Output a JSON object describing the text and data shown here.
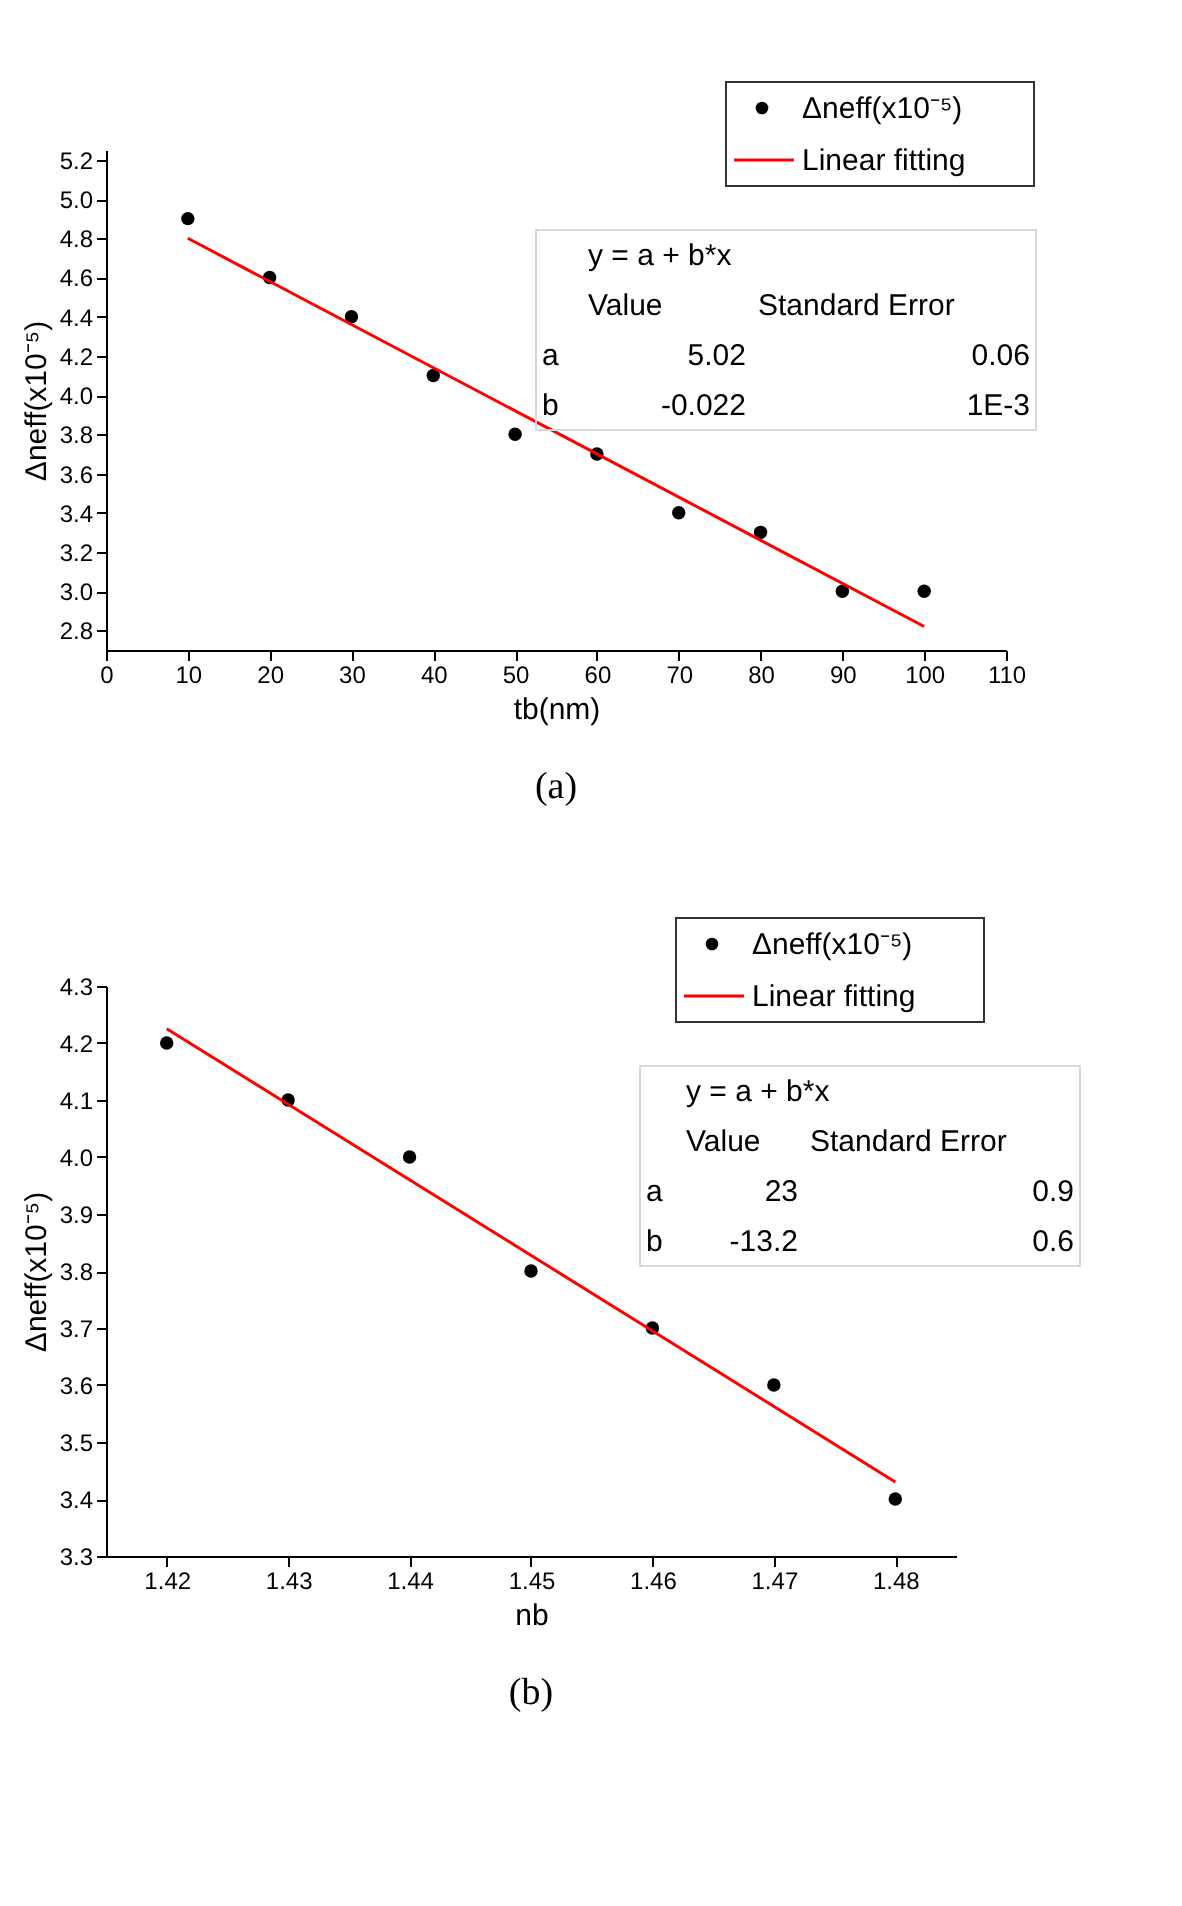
{
  "chart_data": [
    {
      "type": "scatter",
      "xlabel": "tb(nm)",
      "ylabel": "Δneff(x10⁻⁵)",
      "xlim": [
        0,
        110
      ],
      "xticks": [
        0,
        10,
        20,
        30,
        40,
        50,
        60,
        70,
        80,
        90,
        100,
        110
      ],
      "ylim": [
        2.7,
        5.25
      ],
      "yticks": [
        2.8,
        {
          "value": 3,
          "label": "3.0"
        },
        3.2,
        3.4,
        3.6,
        3.8,
        {
          "value": 4,
          "label": "4.0"
        },
        4.2,
        4.4,
        4.6,
        4.8,
        {
          "value": 5,
          "label": "5.0"
        },
        5.2
      ],
      "legend": "top right",
      "series": [
        {
          "name": "Δneff(x10⁻⁵)",
          "color": "#000000",
          "x": [
            10,
            20,
            30,
            40,
            50,
            60,
            70,
            80,
            90,
            100
          ],
          "values": [
            4.9,
            4.6,
            4.4,
            4.1,
            3.8,
            3.7,
            3.4,
            3.3,
            3.0,
            3.0
          ]
        },
        {
          "name": "Linear fitting",
          "type": "line",
          "color": "#ff0000",
          "x": [
            10,
            100
          ],
          "values": [
            4.8,
            2.82
          ]
        }
      ],
      "annotations": [
        "(a)",
        "y = a + b*x",
        "Value",
        "Standard Error",
        "a",
        "5.02",
        "0.06",
        "b",
        "-0.022",
        "1E-3"
      ]
    },
    {
      "type": "scatter",
      "xlabel": "nb",
      "ylabel": "Δneff(x10⁻⁵)",
      "xlim": [
        1.415,
        1.485
      ],
      "xticks": [
        1.42,
        1.43,
        1.44,
        1.45,
        1.46,
        1.47,
        1.48
      ],
      "ylim": [
        3.3,
        4.3
      ],
      "yticks": [
        3.3,
        3.4,
        3.5,
        3.6,
        3.7,
        3.8,
        3.9,
        {
          "value": 4,
          "label": "4.0"
        },
        4.1,
        4.2,
        4.3
      ],
      "legend": "top right",
      "series": [
        {
          "name": "Δneff(x10⁻⁵)",
          "color": "#000000",
          "x": [
            1.42,
            1.43,
            1.44,
            1.45,
            1.46,
            1.47,
            1.48
          ],
          "values": [
            4.2,
            4.1,
            4.0,
            3.8,
            3.7,
            3.6,
            3.4
          ]
        },
        {
          "name": "Linear fitting",
          "type": "line",
          "color": "#ff0000",
          "x": [
            1.42,
            1.48
          ],
          "values": [
            4.225,
            3.43
          ]
        }
      ],
      "annotations": [
        "(b)",
        "y = a + b*x",
        "Value",
        "Standard Error",
        "a",
        "23",
        "0.9",
        "b",
        "-13.2",
        "0.6"
      ]
    }
  ]
}
